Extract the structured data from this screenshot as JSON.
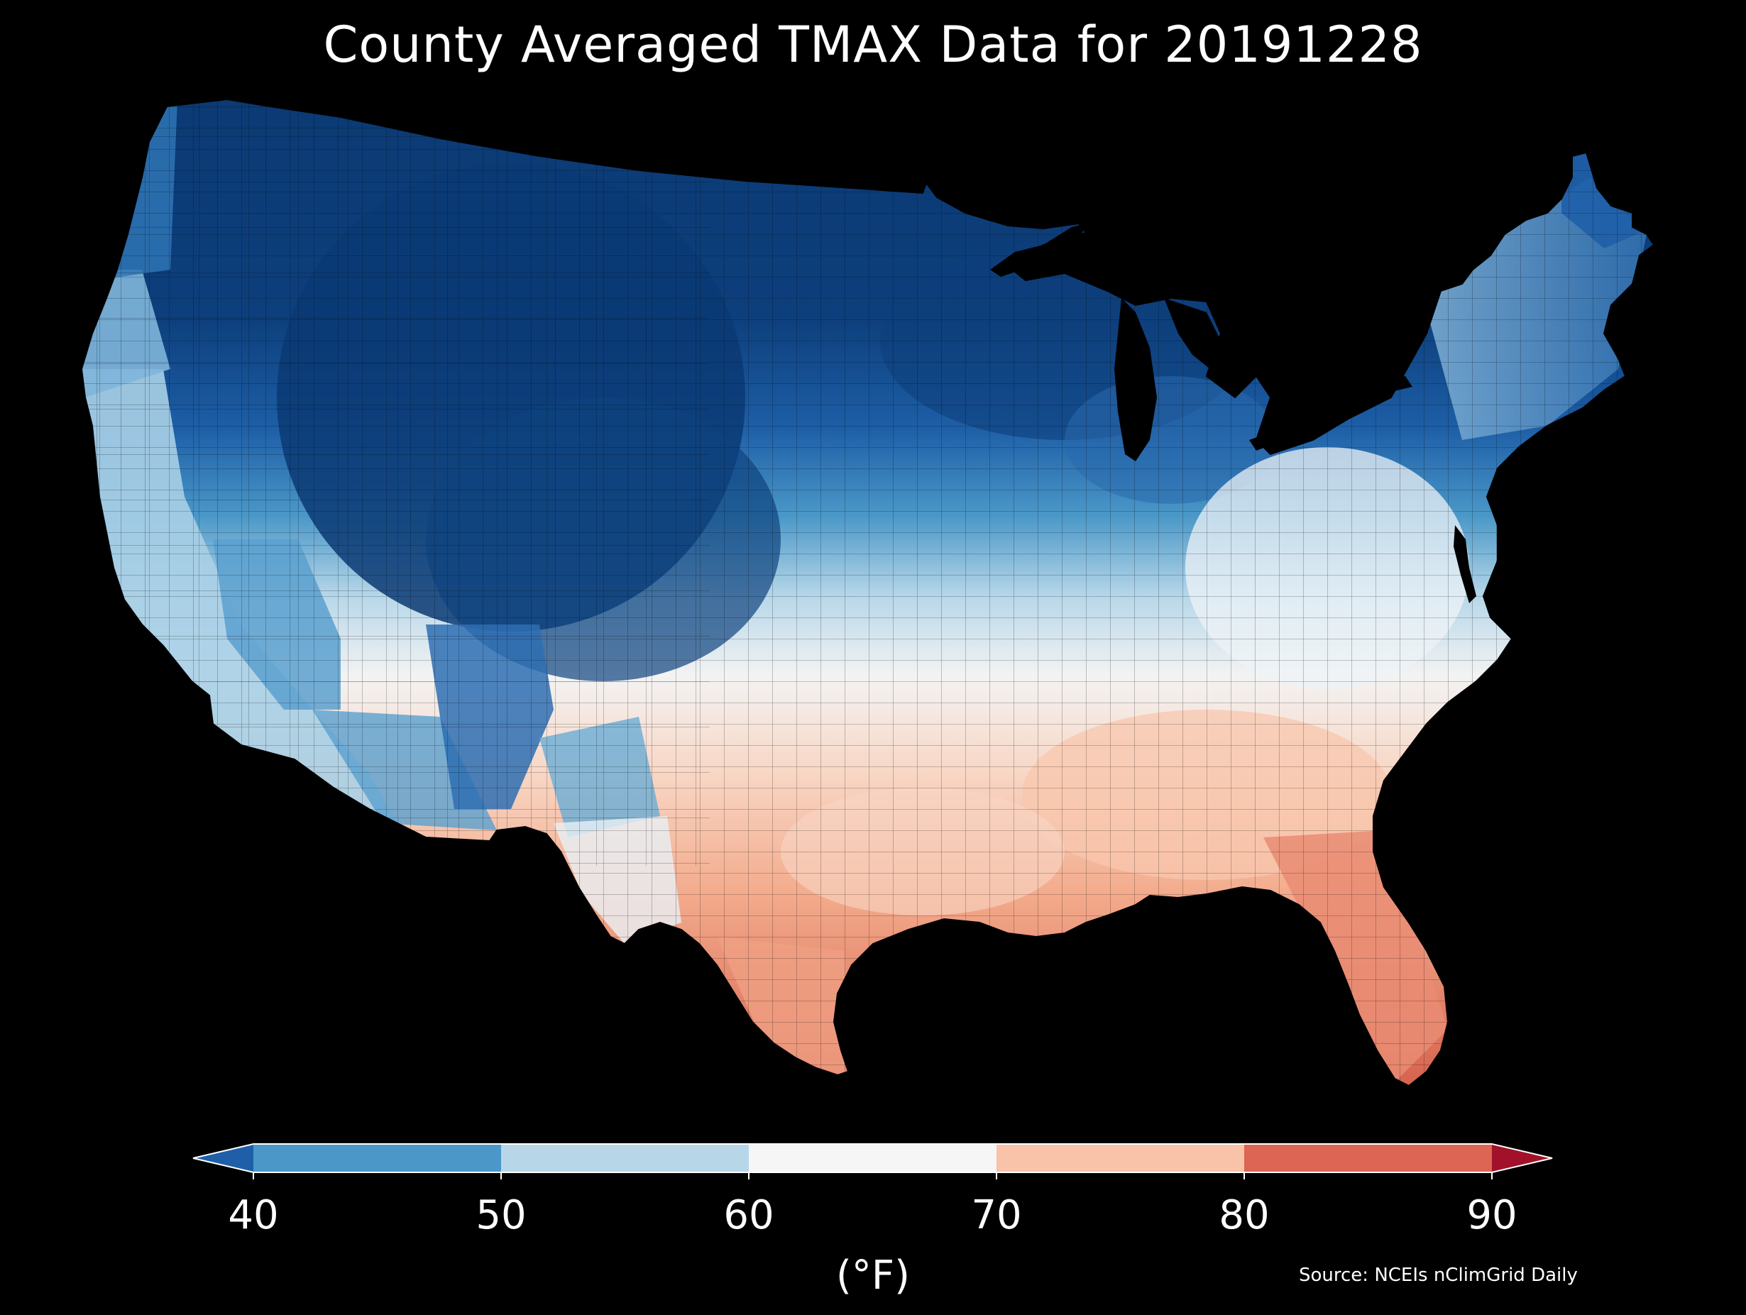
{
  "title": "County Averaged TMAX Data for 20191228",
  "source": "Source: NCEIs nClimGrid Daily",
  "colorbar": {
    "unit_label": "(°F)",
    "ticks": [
      "40",
      "50",
      "60",
      "70",
      "80",
      "90"
    ],
    "bins": [
      {
        "range": "<40",
        "color": "#1f5fa8"
      },
      {
        "range": "40-50",
        "color": "#4b98c8"
      },
      {
        "range": "50-60",
        "color": "#b7d7e9"
      },
      {
        "range": "60-70",
        "color": "#f6f6f6"
      },
      {
        "range": "70-80",
        "color": "#f8c3a8"
      },
      {
        "range": "80-90",
        "color": "#dc6554"
      },
      {
        "range": ">90",
        "color": "#a1122a"
      }
    ]
  },
  "map": {
    "region": "Contiguous United States",
    "variable": "TMAX",
    "date": "20191228",
    "background_color": "#000000",
    "border_color": "#000000"
  }
}
